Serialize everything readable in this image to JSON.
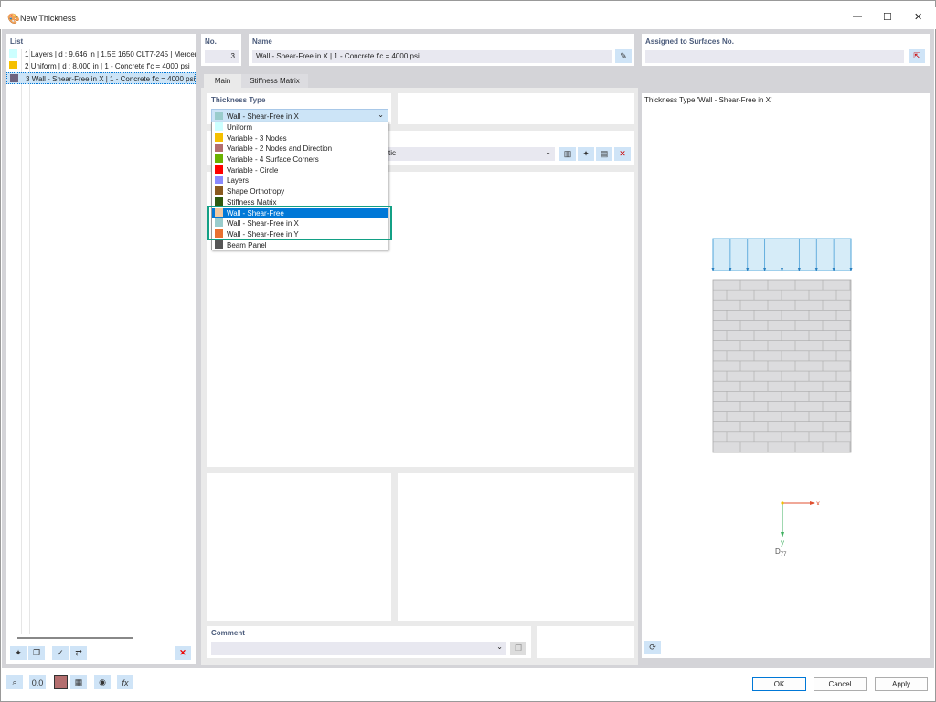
{
  "window": {
    "title": "New Thickness",
    "min": "—",
    "max": "☐",
    "close": "✕"
  },
  "list": {
    "header": "List",
    "items": [
      {
        "no": "1",
        "label": "Layers | d : 9.646 in | 1.5E 1650 CLT7-245 | Mercer",
        "color": "#ccffff"
      },
      {
        "no": "2",
        "label": "Uniform | d : 8.000 in | 1 - Concrete f'c = 4000 psi",
        "color": "#f5c000"
      },
      {
        "no": "3",
        "label": "Wall - Shear-Free in X | 1 - Concrete f'c = 4000 psi",
        "color": "#6e6480"
      }
    ]
  },
  "no": {
    "label": "No.",
    "value": "3"
  },
  "name": {
    "label": "Name",
    "value": "Wall - Shear-Free in X | 1 - Concrete f'c = 4000 psi"
  },
  "assigned": {
    "label": "Assigned to Surfaces No.",
    "value": ""
  },
  "tabs": [
    {
      "label": "Main"
    },
    {
      "label": "Stiffness Matrix"
    }
  ],
  "thickness_type": {
    "label": "Thickness Type",
    "selected": "Wall - Shear-Free in X",
    "selected_color": "#99cccc",
    "options": [
      {
        "label": "Uniform",
        "color": "#ccffff"
      },
      {
        "label": "Variable - 3 Nodes",
        "color": "#f5c000"
      },
      {
        "label": "Variable - 2 Nodes and Direction",
        "color": "#b46e6e"
      },
      {
        "label": "Variable - 4 Surface Corners",
        "color": "#6ab200"
      },
      {
        "label": "Variable - Circle",
        "color": "#ff0000"
      },
      {
        "label": "Layers",
        "color": "#8a8aff"
      },
      {
        "label": "Shape Orthotropy",
        "color": "#8a5a20"
      },
      {
        "label": "Stiffness Matrix",
        "color": "#2e5a10"
      },
      {
        "label": "Wall - Shear-Free",
        "color": "#f0c8a0"
      },
      {
        "label": "Wall - Shear-Free in X",
        "color": "#99cccc"
      },
      {
        "label": "Wall - Shear-Free in Y",
        "color": "#e87030"
      },
      {
        "label": "Beam Panel",
        "color": "#555555"
      }
    ],
    "highlighted": "Wall - Shear-Free"
  },
  "material": {
    "value_partial": "stic"
  },
  "comment": {
    "label": "Comment",
    "value": ""
  },
  "preview": {
    "title": "Thickness Type  'Wall - Shear-Free in X'",
    "axis_x": "x",
    "axis_y": "y",
    "dir_label": "D",
    "dir_sub": "77"
  },
  "buttons": {
    "ok": "OK",
    "cancel": "Cancel",
    "apply": "Apply"
  },
  "colors": {
    "accent": "#0078d7",
    "highlight_frame": "#13a085",
    "selection": "#cce4f7"
  }
}
